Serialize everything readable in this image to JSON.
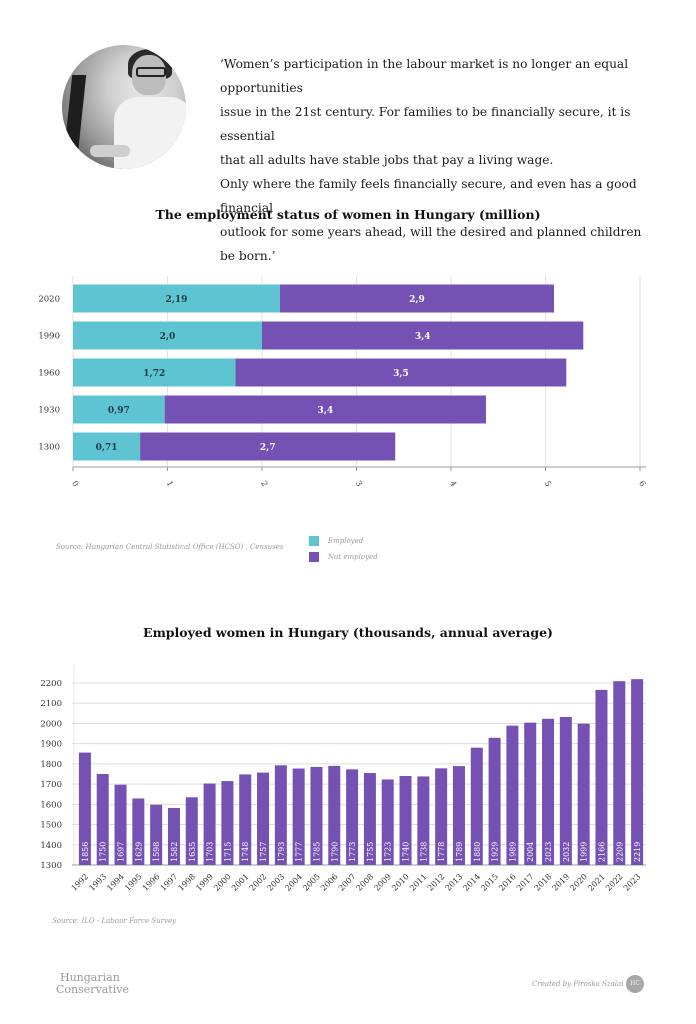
{
  "quote": {
    "lines": [
      "‘Women’s participation in the labour market is no longer an equal opportunities",
      "issue in the 21st century. For families to be financially secure, it is essential",
      "that all adults have stable jobs that pay a living wage.",
      "Only where the family feels financially secure, and even has a good financial",
      "outlook for some years ahead, will the desired and planned children be born.’"
    ]
  },
  "photo": {
    "alt": "woman-at-computer-photo"
  },
  "colors": {
    "employed": "#5fc4d2",
    "not_employed": "#7551b3",
    "bars": "#7551b3",
    "grid": "#dddddd"
  },
  "chart_data": [
    {
      "type": "bar",
      "orientation": "horizontal",
      "stacked": true,
      "title": "The employment status of women in Hungary (million)",
      "categories": [
        "2020",
        "1990",
        "1960",
        "1930",
        "1300"
      ],
      "series": [
        {
          "name": "Employed",
          "values": [
            2.19,
            2.0,
            1.72,
            0.97,
            0.71
          ],
          "labels": [
            "2,19",
            "2,0",
            "1,72",
            "0,97",
            "0,71"
          ]
        },
        {
          "name": "Not employed",
          "values": [
            2.9,
            3.4,
            3.5,
            3.4,
            2.7
          ],
          "labels": [
            "2,9",
            "3,4",
            "3,5",
            "3,4",
            "2,7"
          ]
        }
      ],
      "xlim": [
        0,
        6
      ],
      "xticks": [
        "0",
        "1",
        "2",
        "3",
        "4",
        "5",
        "6"
      ],
      "grid": true,
      "legend": "bottom-center",
      "source": "Source: Hungarian Central Statistical Office (HCSO) , Censuses"
    },
    {
      "type": "bar",
      "title": "Employed women in Hungary (thousands, annual average)",
      "categories": [
        "1992",
        "1993",
        "1994",
        "1995",
        "1996",
        "1997",
        "1998",
        "1999",
        "2000",
        "2001",
        "2002",
        "2003",
        "2004",
        "2005",
        "2006",
        "2007",
        "2008",
        "2009",
        "2010",
        "2011",
        "2012",
        "2013",
        "2014",
        "2015",
        "2016",
        "2017",
        "2018",
        "2019",
        "2020",
        "2021",
        "2022",
        "2023"
      ],
      "values": [
        1856,
        1750,
        1697,
        1629,
        1598,
        1582,
        1635,
        1703,
        1715,
        1748,
        1757,
        1793,
        1777,
        1785,
        1790,
        1773,
        1755,
        1723,
        1740,
        1738,
        1778,
        1789,
        1880,
        1929,
        1989,
        2004,
        2023,
        2032,
        1999,
        2166,
        2209,
        2219
      ],
      "ylim": [
        1300,
        2250
      ],
      "yticks": [
        "1300",
        "1400",
        "1500",
        "1600",
        "1700",
        "1800",
        "1900",
        "2000",
        "2100",
        "2200"
      ],
      "grid": true,
      "source": "Source: ILO - Labour Force Survey"
    }
  ],
  "legend": {
    "employed": "Employed",
    "not_employed": "Not employed"
  },
  "footer": {
    "brand_line1": "Hungarian",
    "brand_line2": "Conservative",
    "credit": "Created by Piroska Szalai",
    "seal": "HC"
  }
}
